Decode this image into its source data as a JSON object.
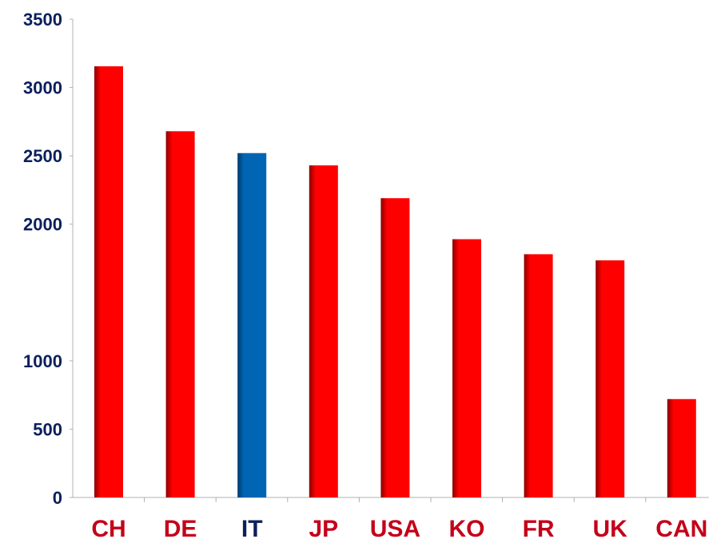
{
  "chart_data": {
    "type": "bar",
    "categories": [
      "CH",
      "DE",
      "IT",
      "JP",
      "USA",
      "KO",
      "FR",
      "UK",
      "CAN"
    ],
    "values": [
      3155,
      2680,
      2520,
      2430,
      2190,
      1890,
      1780,
      1735,
      720
    ],
    "ylim": [
      0,
      3500
    ],
    "yticks": [
      0,
      500,
      1000,
      2000,
      2500,
      3000,
      3500
    ],
    "title": "",
    "xlabel": "",
    "ylabel": "",
    "grid": false,
    "colors": {
      "bar": "#ff0000",
      "bar_shadow": "#8a0000",
      "highlight_bar": "#0066b3",
      "highlight_shadow": "#003a6b",
      "highlight_category": "IT",
      "x_label": "#c40018",
      "x_label_highlight": "#0b1f5c",
      "y_label": "#0b1f5c",
      "axis": "#b0b0b0"
    }
  }
}
